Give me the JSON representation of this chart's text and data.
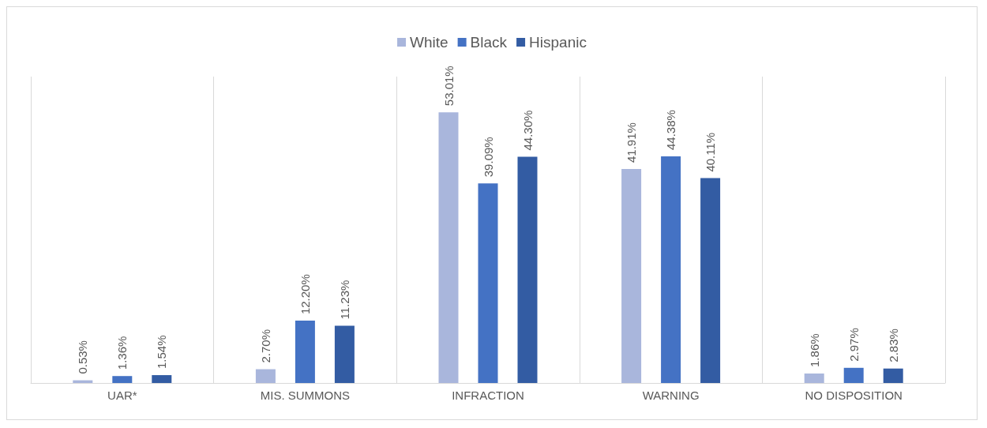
{
  "chart_data": {
    "type": "bar",
    "categories": [
      "UAR*",
      "MIS. SUMMONS",
      "INFRACTION",
      "WARNING",
      "NO DISPOSITION"
    ],
    "series": [
      {
        "name": "White",
        "color": "#a9b6dc",
        "values": [
          0.53,
          2.7,
          53.01,
          41.91,
          1.86
        ],
        "value_labels": [
          "0.53%",
          "2.70%",
          "53.01%",
          "41.91%",
          "1.86%"
        ]
      },
      {
        "name": "Black",
        "color": "#4472c4",
        "values": [
          1.36,
          12.2,
          39.09,
          44.38,
          2.97
        ],
        "value_labels": [
          "1.36%",
          "12.20%",
          "39.09%",
          "44.38%",
          "2.97%"
        ]
      },
      {
        "name": "Hispanic",
        "color": "#335ca3",
        "values": [
          1.54,
          11.23,
          44.3,
          40.11,
          2.83
        ],
        "value_labels": [
          "1.54%",
          "11.23%",
          "44.30%",
          "40.11%",
          "2.83%"
        ]
      }
    ],
    "grid": "x",
    "legend": "top"
  }
}
